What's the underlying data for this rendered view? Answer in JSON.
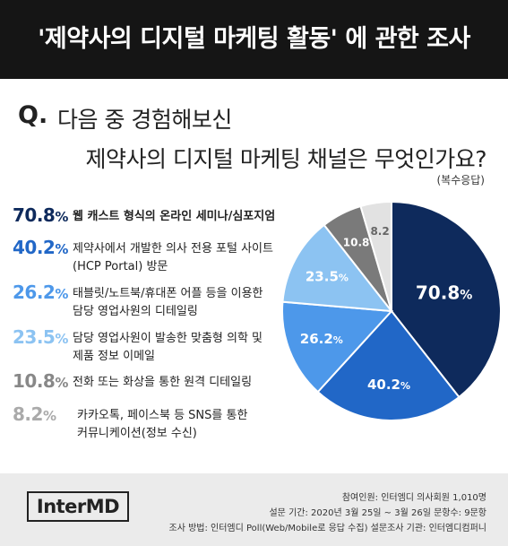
{
  "header": {
    "title": "'제약사의 디지털 마케팅 활동' 에 관한 조사"
  },
  "question": {
    "mark": "Q.",
    "line1": "다음 중 경험해보신",
    "line2": "제약사의 디지털 마케팅 채널은 무엇인가요?",
    "note": "(복수응답)"
  },
  "unit": "%",
  "chart_data": {
    "type": "pie",
    "title": "'제약사의 디지털 마케팅 활동' 에 관한 조사",
    "categories": [
      "웹 캐스트 형식의 온라인 세미나/심포지엄",
      "제약사에서 개발한 의사 전용 포털 사이트 (HCP Portal) 방문",
      "태블릿/노트북/휴대폰 어플 등을 이용한 담당 영업사원의 디테일링",
      "담당 영업사원이 발송한 맞춤형 의학 및 제품 정보 이메일",
      "전화 또는 화상을 통한 원격 디테일링",
      "카카오톡, 페이스북 등 SNS를 통한 커뮤니케이션(정보 수신)"
    ],
    "values": [
      70.8,
      40.2,
      26.2,
      23.5,
      10.8,
      8.2
    ],
    "value_labels": [
      "70.8",
      "40.2",
      "26.2",
      "23.5",
      "10.8",
      "8.2"
    ],
    "unit": "%",
    "colors": [
      "#0e2a5c",
      "#2167c7",
      "#4d98ea",
      "#8cc3f2",
      "#7a7a7a",
      "#e2e2e2"
    ],
    "label_colors": [
      "#ffffff",
      "#ffffff",
      "#ffffff",
      "#ffffff",
      "#ffffff",
      "#666666"
    ],
    "desc_lines": [
      [
        "웹 캐스트 형식의 온라인 세미나/심포지엄"
      ],
      [
        "제약사에서 개발한 의사 전용 포털 사이트",
        "(HCP Portal) 방문"
      ],
      [
        "태블릿/노트북/휴대폰 어플 등을 이용한",
        "담당 영업사원의 디테일링"
      ],
      [
        "담당 영업사원이 발송한 맞춤형 의학 및",
        "제품 정보 이메일"
      ],
      [
        "전화 또는 화상을 통한 원격 디테일링"
      ],
      [
        "카카오톡, 페이스북 등 SNS를 통한",
        "커뮤니케이션(정보 수신)"
      ]
    ],
    "pct_colors": [
      "#0e2a5c",
      "#2167c7",
      "#4d98ea",
      "#8cc3f2",
      "#888888",
      "#aaaaaa"
    ],
    "legend_position": "left"
  },
  "footer": {
    "logo": "InterMD",
    "participants": "참여인원: 인터엠디 의사회원 1,010명",
    "period": "설문 기간: 2020년 3월 25일 ~ 3월 26일   문항수: 9문항",
    "method": "조사 방법: 인터엠디 Poll(Web/Mobile로 응답 수집)   설문조사 기관: 인터엠디컴퍼니"
  }
}
